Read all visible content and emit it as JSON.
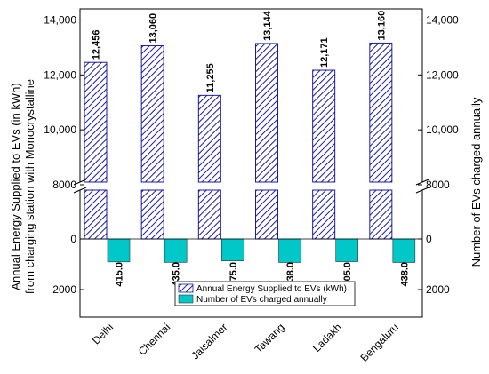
{
  "chart_data": {
    "type": "bar",
    "categories": [
      "Delhi",
      "Chennai",
      "Jaisalmer",
      "Tawang",
      "Ladakh",
      "Bengaluru"
    ],
    "series": [
      {
        "name": "Annual Energy Supplied to EVs (kWh)",
        "values": [
          12456,
          13060,
          11255,
          13144,
          12171,
          13160
        ],
        "labels": [
          "12,456",
          "13,060",
          "11,255",
          "13,144",
          "12,171",
          "13,160"
        ],
        "color": "#1a1aa6",
        "pattern": "diagonal-hatch"
      },
      {
        "name": "Number of EVs charged annually",
        "values": [
          415,
          435,
          375,
          438,
          405,
          438
        ],
        "labels": [
          "415.0",
          "435.0",
          "375.0",
          "438.0",
          "405.0",
          "438.0"
        ],
        "color": "#00c8c8",
        "direction": "downward"
      }
    ],
    "ylabel": "Annual Energy Supplied to EVs (in kWh) from charging station with Monocrystalline",
    "ylabel_lines": [
      "Annual Energy Supplied to EVs (in kWh)",
      "from charging station with Monocrystalline"
    ],
    "y2label": "Number of EVs charged annually",
    "y_left_ticks_upper": [
      "14,000",
      "12,000",
      "10,000",
      "8000"
    ],
    "y_left_ticks_lower": [
      "0",
      "2000"
    ],
    "y_right_ticks_upper": [
      "14,000",
      "12,000",
      "10,000",
      "8000"
    ],
    "y_right_ticks_lower": [
      "0",
      "2000"
    ],
    "y_upper_range": [
      8000,
      14500
    ],
    "y_lower_range": [
      0,
      3000
    ],
    "axis_break": true,
    "grid": false,
    "legend_position": "bottom-center"
  }
}
